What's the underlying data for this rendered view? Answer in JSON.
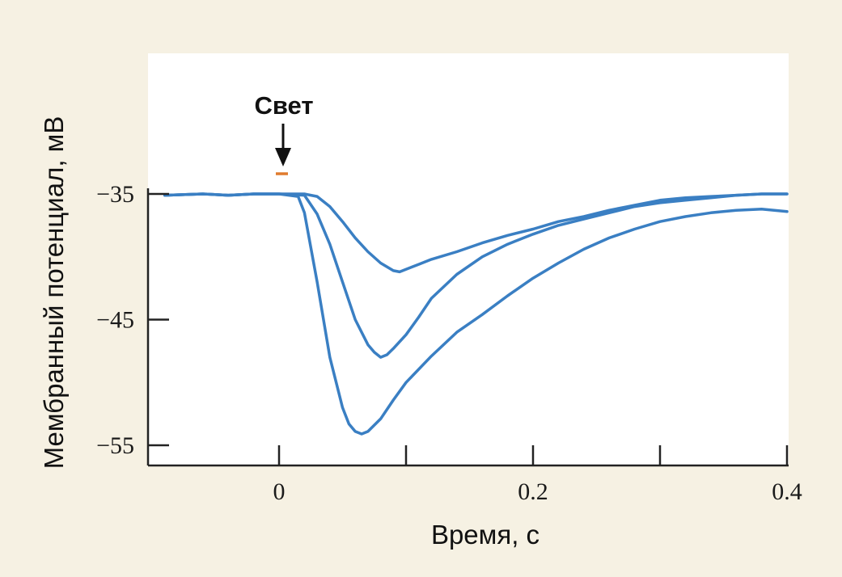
{
  "chart_data": {
    "type": "line",
    "xlabel": "Время, с",
    "ylabel": "Мембранный потенциал, мВ",
    "xlim": [
      -0.1,
      0.4
    ],
    "ylim": [
      -56.5,
      -23
    ],
    "x_ticks": [
      0,
      0.1,
      0.2,
      0.3,
      0.4
    ],
    "x_tick_labels": [
      "0",
      "",
      "0.2",
      "",
      "0.4"
    ],
    "y_ticks": [
      -35,
      -45,
      -55
    ],
    "y_tick_labels": [
      "−35",
      "−45",
      "−55"
    ],
    "grid": false,
    "annotation": {
      "text": "Свет",
      "x": 0.003,
      "marker": "arrow-down"
    },
    "series": [
      {
        "x": [
          -0.09,
          -0.06,
          -0.04,
          -0.02,
          0.0,
          0.02,
          0.03,
          0.04,
          0.05,
          0.06,
          0.07,
          0.08,
          0.09,
          0.095,
          0.1,
          0.11,
          0.12,
          0.14,
          0.16,
          0.18,
          0.2,
          0.22,
          0.24,
          0.26,
          0.28,
          0.3,
          0.32,
          0.34,
          0.36,
          0.38,
          0.4
        ],
        "values": [
          -35.1,
          -35.0,
          -35.1,
          -35.0,
          -35.0,
          -35.0,
          -35.2,
          -36.0,
          -37.2,
          -38.5,
          -39.6,
          -40.5,
          -41.1,
          -41.2,
          -41.0,
          -40.6,
          -40.2,
          -39.6,
          -38.9,
          -38.3,
          -37.8,
          -37.2,
          -36.8,
          -36.3,
          -35.9,
          -35.5,
          -35.3,
          -35.2,
          -35.1,
          -35.0,
          -35.0
        ]
      },
      {
        "x": [
          -0.09,
          -0.06,
          -0.04,
          -0.02,
          0.0,
          0.02,
          0.03,
          0.04,
          0.05,
          0.06,
          0.07,
          0.075,
          0.08,
          0.085,
          0.09,
          0.1,
          0.11,
          0.12,
          0.14,
          0.16,
          0.18,
          0.2,
          0.22,
          0.24,
          0.26,
          0.28,
          0.3,
          0.32,
          0.34,
          0.36,
          0.38,
          0.4
        ],
        "values": [
          -35.1,
          -35.0,
          -35.1,
          -35.0,
          -35.0,
          -35.1,
          -36.6,
          -39.0,
          -42.0,
          -45.0,
          -47.0,
          -47.6,
          -48.0,
          -47.8,
          -47.3,
          -46.2,
          -44.8,
          -43.3,
          -41.4,
          -40.0,
          -39.0,
          -38.2,
          -37.5,
          -37.0,
          -36.5,
          -36.0,
          -35.7,
          -35.5,
          -35.3,
          -35.1,
          -35.0,
          -35.0
        ]
      },
      {
        "x": [
          -0.09,
          -0.06,
          -0.04,
          -0.02,
          0.0,
          0.015,
          0.02,
          0.03,
          0.04,
          0.05,
          0.055,
          0.06,
          0.065,
          0.07,
          0.08,
          0.09,
          0.1,
          0.12,
          0.14,
          0.16,
          0.18,
          0.2,
          0.22,
          0.24,
          0.26,
          0.28,
          0.3,
          0.32,
          0.34,
          0.36,
          0.38,
          0.4
        ],
        "values": [
          -35.1,
          -35.0,
          -35.1,
          -35.0,
          -35.0,
          -35.2,
          -36.5,
          -42.0,
          -48.0,
          -52.0,
          -53.3,
          -53.9,
          -54.1,
          -53.9,
          -52.9,
          -51.4,
          -50.0,
          -47.9,
          -46.0,
          -44.6,
          -43.1,
          -41.7,
          -40.5,
          -39.4,
          -38.5,
          -37.8,
          -37.2,
          -36.8,
          -36.5,
          -36.3,
          -36.2,
          -36.4
        ]
      }
    ]
  },
  "colors": {
    "background": "#f6f1e3",
    "plot_area": "#ffffff",
    "trace": "#3a7fc3",
    "axis": "#222222",
    "stimulus_bar": "#e07b2e"
  }
}
